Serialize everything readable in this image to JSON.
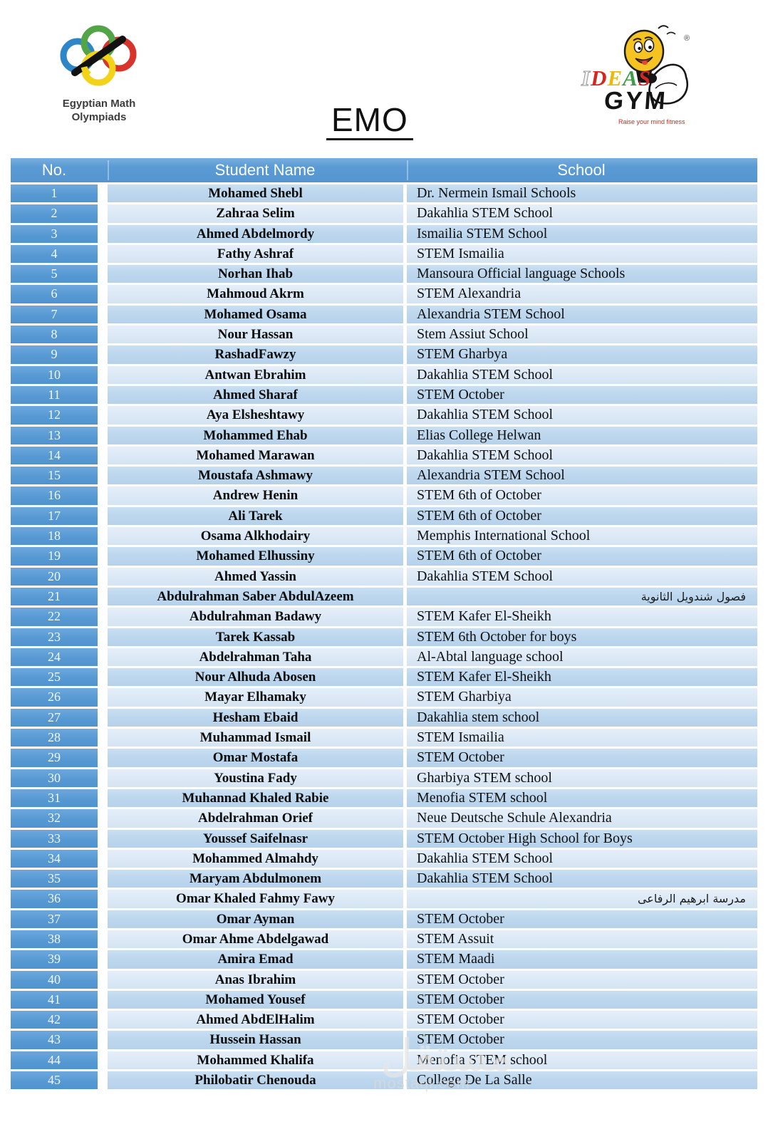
{
  "page": {
    "title": "EMO",
    "watermark": {
      "arabic": "مستقل",
      "latin": "mostaql.com"
    }
  },
  "logos": {
    "emo": {
      "line1": "Egyptian Math",
      "line2": "Olympiads"
    },
    "ideas_gym": {
      "letters": [
        {
          "ch": "I",
          "color": "#f3f3f3",
          "outline": true
        },
        {
          "ch": "D",
          "color": "#d3271f",
          "outline": false
        },
        {
          "ch": "E",
          "color": "#e9b90c",
          "outline": false
        },
        {
          "ch": "A",
          "color": "#3f9e45",
          "outline": false
        },
        {
          "ch": "S",
          "color": "#d3271f",
          "outline": false
        }
      ],
      "gym": "GYM",
      "tagline": "Raise your mind fitness",
      "registered": "®"
    }
  },
  "colors": {
    "header_blue": "#5b9bd5",
    "number_column_blue": "#5495d0",
    "band_dark": "#bdd7ee",
    "band_light": "#dce9f6",
    "ring_blue": "#2e86c8",
    "ring_green": "#52a447",
    "ring_red": "#d8342c",
    "ring_yellow": "#f2d319"
  },
  "table": {
    "headers": [
      "No.",
      "Student Name",
      "School"
    ],
    "rows": [
      {
        "no": "1",
        "name": "Mohamed Shebl",
        "school": "Dr. Nermein Ismail Schools",
        "rtl": false
      },
      {
        "no": "2",
        "name": "Zahraa Selim",
        "school": "Dakahlia STEM School",
        "rtl": false
      },
      {
        "no": "3",
        "name": "Ahmed Abdelmordy",
        "school": "Ismailia STEM School",
        "rtl": false
      },
      {
        "no": "4",
        "name": "Fathy Ashraf",
        "school": "STEM Ismailia",
        "rtl": false
      },
      {
        "no": "5",
        "name": "Norhan Ihab",
        "school": "Mansoura Official language Schools",
        "rtl": false
      },
      {
        "no": "6",
        "name": "Mahmoud Akrm",
        "school": "STEM Alexandria",
        "rtl": false
      },
      {
        "no": "7",
        "name": "Mohamed Osama",
        "school": "Alexandria STEM School",
        "rtl": false
      },
      {
        "no": "8",
        "name": "Nour Hassan",
        "school": "Stem Assiut School",
        "rtl": false
      },
      {
        "no": "9",
        "name": "RashadFawzy",
        "school": "STEM Gharbya",
        "rtl": false
      },
      {
        "no": "10",
        "name": "Antwan Ebrahim",
        "school": "Dakahlia STEM School",
        "rtl": false
      },
      {
        "no": "11",
        "name": "Ahmed Sharaf",
        "school": "STEM October",
        "rtl": false
      },
      {
        "no": "12",
        "name": "Aya Elsheshtawy",
        "school": "Dakahlia STEM School",
        "rtl": false
      },
      {
        "no": "13",
        "name": "Mohammed Ehab",
        "school": "Elias College Helwan",
        "rtl": false
      },
      {
        "no": "14",
        "name": "Mohamed Marawan",
        "school": "Dakahlia STEM School",
        "rtl": false
      },
      {
        "no": "15",
        "name": "Moustafa Ashmawy",
        "school": "Alexandria STEM School",
        "rtl": false
      },
      {
        "no": "16",
        "name": "Andrew Henin",
        "school": "STEM 6th of October",
        "rtl": false
      },
      {
        "no": "17",
        "name": "Ali Tarek",
        "school": "STEM 6th of October",
        "rtl": false
      },
      {
        "no": "18",
        "name": "Osama Alkhodairy",
        "school": "Memphis International School",
        "rtl": false
      },
      {
        "no": "19",
        "name": "Mohamed Elhussiny",
        "school": "STEM 6th of October",
        "rtl": false
      },
      {
        "no": "20",
        "name": "Ahmed Yassin",
        "school": "Dakahlia STEM School",
        "rtl": false
      },
      {
        "no": "21",
        "name": "Abdulrahman Saber AbdulAzeem",
        "school": "فصول شندويل الثانوية",
        "rtl": true
      },
      {
        "no": "22",
        "name": "Abdulrahman Badawy",
        "school": "STEM Kafer El-Sheikh",
        "rtl": false
      },
      {
        "no": "23",
        "name": "Tarek Kassab",
        "school": "STEM 6th October for boys",
        "rtl": false
      },
      {
        "no": "24",
        "name": "Abdelrahman Taha",
        "school": "Al-Abtal language school",
        "rtl": false
      },
      {
        "no": "25",
        "name": "Nour Alhuda Abosen",
        "school": "STEM Kafer El-Sheikh",
        "rtl": false
      },
      {
        "no": "26",
        "name": "Mayar Elhamaky",
        "school": "STEM Gharbiya",
        "rtl": false
      },
      {
        "no": "27",
        "name": "Hesham Ebaid",
        "school": "Dakahlia stem school",
        "rtl": false
      },
      {
        "no": "28",
        "name": "Muhammad Ismail",
        "school": "STEM Ismailia",
        "rtl": false
      },
      {
        "no": "29",
        "name": "Omar Mostafa",
        "school": "STEM October",
        "rtl": false
      },
      {
        "no": "30",
        "name": "Youstina Fady",
        "school": "Gharbiya STEM school",
        "rtl": false
      },
      {
        "no": "31",
        "name": "Muhannad Khaled Rabie",
        "school": "Menofia STEM school",
        "rtl": false
      },
      {
        "no": "32",
        "name": "Abdelrahman Orief",
        "school": "Neue Deutsche Schule Alexandria",
        "rtl": false
      },
      {
        "no": "33",
        "name": "Youssef Saifelnasr",
        "school": "STEM October High School for Boys",
        "rtl": false
      },
      {
        "no": "34",
        "name": "Mohammed Almahdy",
        "school": "Dakahlia STEM School",
        "rtl": false
      },
      {
        "no": "35",
        "name": "Maryam Abdulmonem",
        "school": "Dakahlia STEM School",
        "rtl": false
      },
      {
        "no": "36",
        "name": "Omar Khaled Fahmy Fawy",
        "school": "مدرسة ابرهيم الرفاعى",
        "rtl": true
      },
      {
        "no": "37",
        "name": "Omar Ayman",
        "school": "STEM October",
        "rtl": false
      },
      {
        "no": "38",
        "name": "Omar Ahme Abdelgawad",
        "school": "STEM Assuit",
        "rtl": false
      },
      {
        "no": "39",
        "name": "Amira Emad",
        "school": "STEM Maadi",
        "rtl": false
      },
      {
        "no": "40",
        "name": "Anas Ibrahim",
        "school": "STEM October",
        "rtl": false
      },
      {
        "no": "41",
        "name": "Mohamed Yousef",
        "school": "STEM October",
        "rtl": false
      },
      {
        "no": "42",
        "name": "Ahmed AbdElHalim",
        "school": "STEM October",
        "rtl": false
      },
      {
        "no": "43",
        "name": "Hussein Hassan",
        "school": "STEM October",
        "rtl": false
      },
      {
        "no": "44",
        "name": "Mohammed Khalifa",
        "school": "Menofia STEM school",
        "rtl": false
      },
      {
        "no": "45",
        "name": "Philobatir Chenouda",
        "school": "College De La Salle",
        "rtl": false
      }
    ]
  }
}
